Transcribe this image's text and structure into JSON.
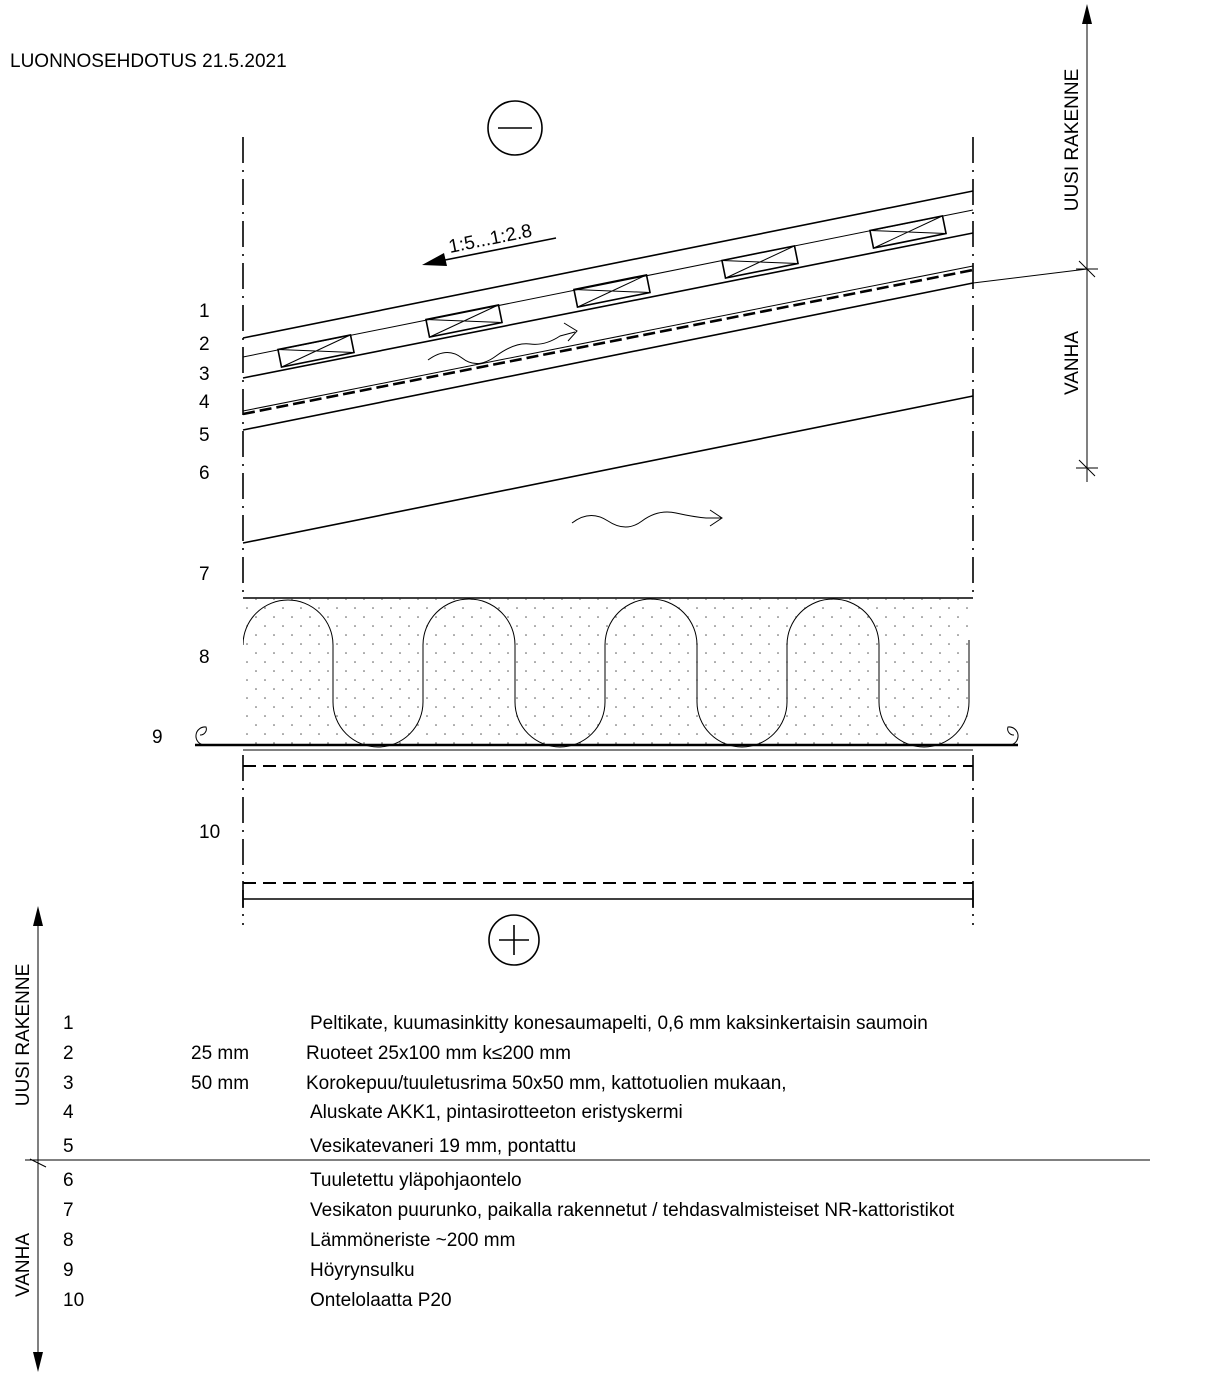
{
  "title": "LUONNOSEHDOTUS 21.5.2021",
  "slope_label": "1:5...1:2.8",
  "symbols": {
    "cold_side": "minus-sign",
    "warm_side": "plus-sign"
  },
  "zones": {
    "new": "UUSI RAKENNE",
    "old": "VANHA"
  },
  "layer_numbers": [
    "1",
    "2",
    "3",
    "4",
    "5",
    "6",
    "7",
    "8",
    "9",
    "10"
  ],
  "legend": [
    {
      "num": "1",
      "thickness": "",
      "text": "Peltikate, kuumasinkitty konesaumapelti, 0,6 mm kaksinkertaisin saumoin"
    },
    {
      "num": "2",
      "thickness": "25 mm",
      "text": "Ruoteet  25x100 mm k≤200 mm"
    },
    {
      "num": "3",
      "thickness": "50 mm",
      "text": "Korokepuu/tuuletusrima 50x50 mm, kattotuolien mukaan,"
    },
    {
      "num": "4",
      "thickness": "",
      "text": "Aluskate AKK1, pintasirotteeton eristyskermi"
    },
    {
      "num": "5",
      "thickness": "",
      "text": "Vesikatevaneri 19 mm, pontattu"
    },
    {
      "num": "6",
      "thickness": "",
      "text": "Tuuletettu yläpohjaontelo"
    },
    {
      "num": "7",
      "thickness": "",
      "text": "Vesikaton puurunko, paikalla rakennetut / tehdasvalmisteiset NR-kattoristikot"
    },
    {
      "num": "8",
      "thickness": "",
      "text": "Lämmöneriste ~200 mm"
    },
    {
      "num": "9",
      "thickness": "",
      "text": "Höyrynsulku"
    },
    {
      "num": "10",
      "thickness": "",
      "text": "Ontelolaatta P20"
    }
  ]
}
